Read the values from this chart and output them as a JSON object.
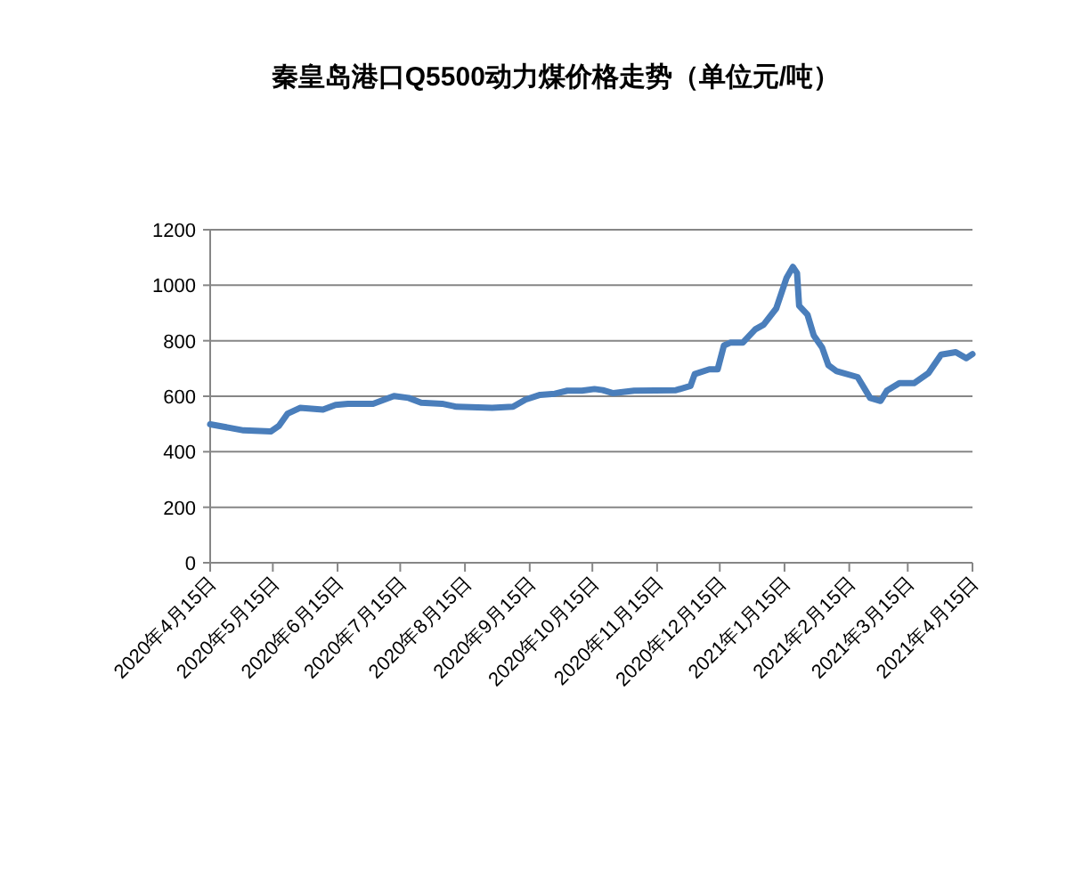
{
  "chart_data": {
    "type": "line",
    "title": "秦皇岛港口Q5500动力煤价格走势（单位元/吨）",
    "x": [
      "2020-04-15",
      "2020-05-01",
      "2020-05-14",
      "2020-05-18",
      "2020-05-22",
      "2020-05-28",
      "2020-06-08",
      "2020-06-14",
      "2020-06-20",
      "2020-07-02",
      "2020-07-12",
      "2020-07-19",
      "2020-07-25",
      "2020-08-04",
      "2020-08-11",
      "2020-08-28",
      "2020-09-07",
      "2020-09-13",
      "2020-09-20",
      "2020-09-27",
      "2020-10-03",
      "2020-10-10",
      "2020-10-16",
      "2020-10-20",
      "2020-10-25",
      "2020-11-04",
      "2020-11-24",
      "2020-12-01",
      "2020-12-03",
      "2020-12-10",
      "2020-12-14",
      "2020-12-17",
      "2020-12-20",
      "2020-12-26",
      "2021-01-01",
      "2021-01-05",
      "2021-01-11",
      "2021-01-16",
      "2021-01-19",
      "2021-01-21",
      "2021-01-22",
      "2021-01-26",
      "2021-01-29",
      "2021-02-02",
      "2021-02-05",
      "2021-02-09",
      "2021-02-19",
      "2021-02-25",
      "2021-03-02",
      "2021-03-05",
      "2021-03-11",
      "2021-03-18",
      "2021-03-25",
      "2021-03-31",
      "2021-04-07",
      "2021-04-12",
      "2021-04-15"
    ],
    "series": [
      {
        "color": "#4a7ebb",
        "values": [
          499,
          477,
          473,
          494,
          537,
          558,
          552,
          569,
          573,
          573,
          601,
          594,
          577,
          573,
          562,
          558,
          562,
          588,
          605,
          609,
          620,
          620,
          626,
          622,
          611,
          620,
          622,
          637,
          680,
          697,
          697,
          783,
          793,
          793,
          841,
          858,
          916,
          1027,
          1066,
          1044,
          926,
          894,
          819,
          776,
          712,
          690,
          669,
          594,
          583,
          620,
          647,
          647,
          684,
          750,
          759,
          737,
          752
        ]
      }
    ],
    "xlim": [
      "2020-04-15",
      "2021-04-15"
    ],
    "xticks": [
      {
        "value": "2020-04-15",
        "label": "2020年4月15日"
      },
      {
        "value": "2020-05-15",
        "label": "2020年5月15日"
      },
      {
        "value": "2020-06-15",
        "label": "2020年6月15日"
      },
      {
        "value": "2020-07-15",
        "label": "2020年7月15日"
      },
      {
        "value": "2020-08-15",
        "label": "2020年8月15日"
      },
      {
        "value": "2020-09-15",
        "label": "2020年9月15日"
      },
      {
        "value": "2020-10-15",
        "label": "2020年10月15日"
      },
      {
        "value": "2020-11-15",
        "label": "2020年11月15日"
      },
      {
        "value": "2020-12-15",
        "label": "2020年12月15日"
      },
      {
        "value": "2021-01-15",
        "label": "2021年1月15日"
      },
      {
        "value": "2021-02-15",
        "label": "2021年2月15日"
      },
      {
        "value": "2021-03-15",
        "label": "2021年3月15日"
      },
      {
        "value": "2021-04-15",
        "label": "2021年4月15日"
      }
    ],
    "ylim": [
      0,
      1200
    ],
    "yticks": [
      0,
      200,
      400,
      600,
      800,
      1000,
      1200
    ],
    "grid": "y",
    "marker": "none",
    "line_style": "solid"
  }
}
